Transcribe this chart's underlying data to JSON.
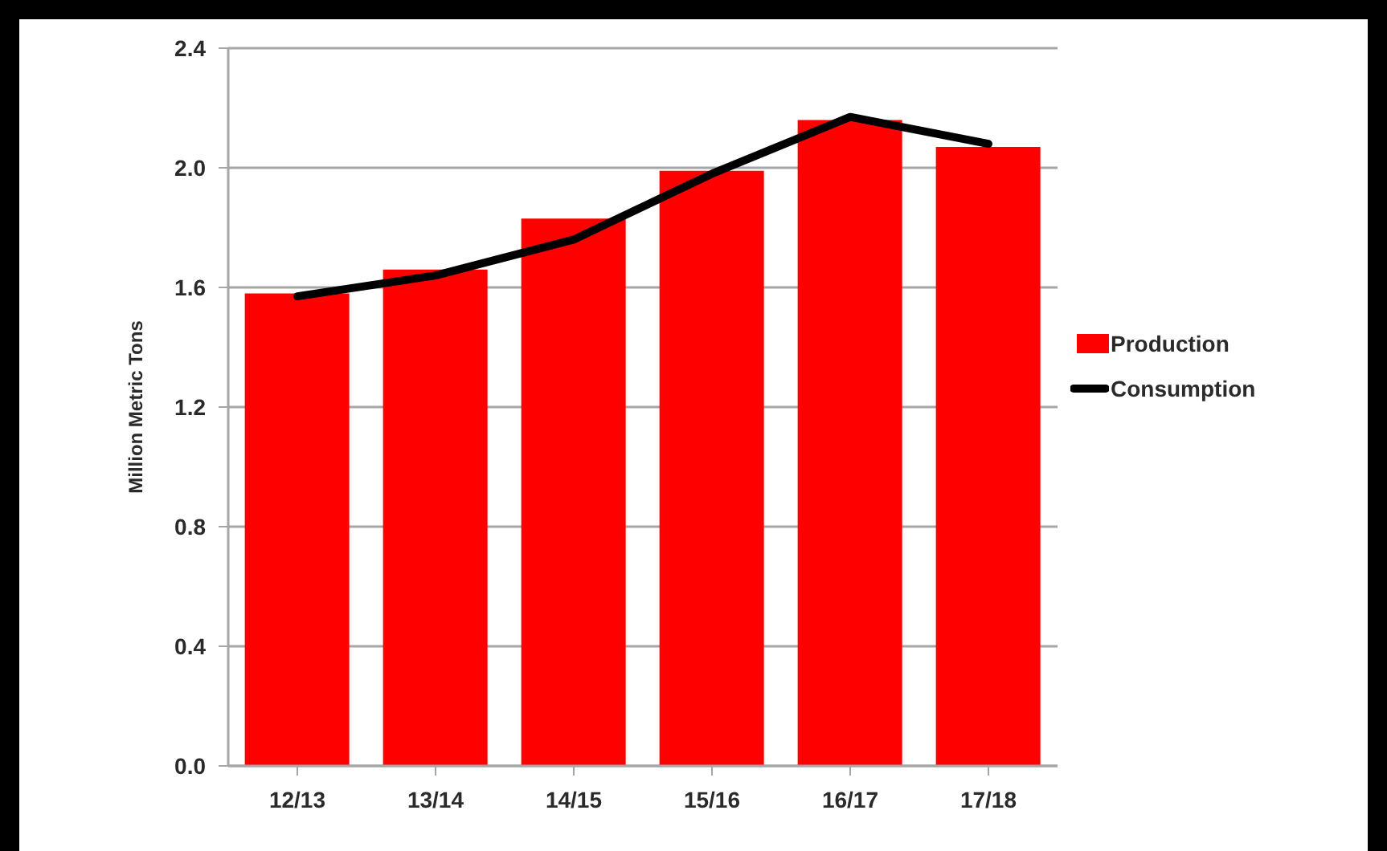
{
  "chart_data": {
    "type": "bar",
    "ylabel": "Million Metric Tons",
    "categories": [
      "12/13",
      "13/14",
      "14/15",
      "15/16",
      "16/17",
      "17/18"
    ],
    "series": [
      {
        "name": "Production",
        "color": "#ff0000",
        "values": [
          1.58,
          1.66,
          1.83,
          1.99,
          2.16,
          2.07
        ]
      },
      {
        "name": "Consumption",
        "type": "line",
        "color": "#000000",
        "values": [
          1.57,
          1.64,
          1.76,
          1.98,
          2.17,
          2.08
        ]
      }
    ],
    "ylim": [
      0,
      2.4
    ],
    "yticks": [
      {
        "value": 0,
        "label": "0.0"
      },
      {
        "value": 0.4,
        "label": "0.4"
      },
      {
        "value": 0.8,
        "label": "0.8"
      },
      {
        "value": 1.2,
        "label": "1.2"
      },
      {
        "value": 1.6,
        "label": "1.6"
      },
      {
        "value": 2,
        "label": "2.0"
      },
      {
        "value": 2.4,
        "label": "2.4"
      }
    ],
    "grid": "y",
    "legend": "right"
  }
}
